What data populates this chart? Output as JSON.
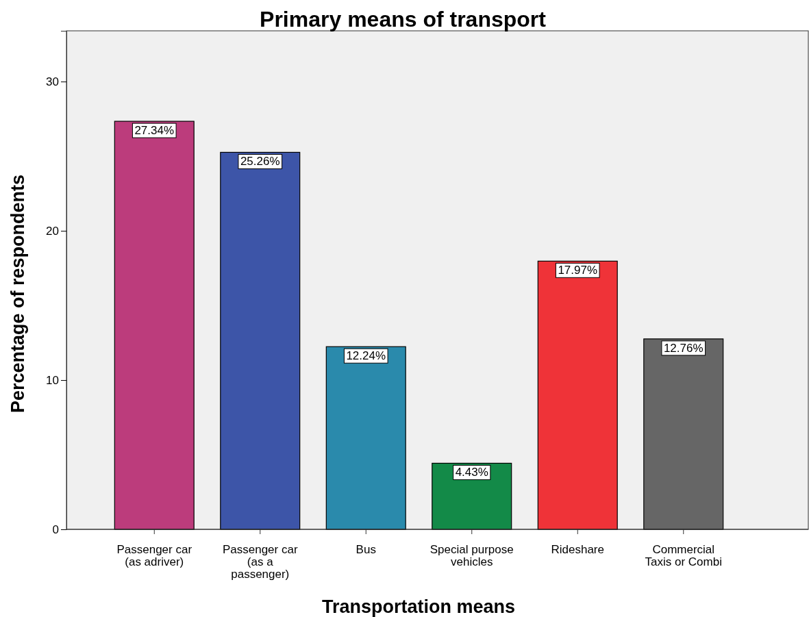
{
  "chart_data": {
    "type": "bar",
    "title": "Primary means of transport",
    "xlabel": "Transportation means",
    "ylabel": "Percentage of respondents",
    "categories": [
      "Passenger car\n(as adriver)",
      "Passenger car\n(as a\npassenger)",
      "Bus",
      "Special purpose\nvehicles",
      "Rideshare",
      "Commercial\nTaxis or Combi"
    ],
    "values": [
      27.34,
      25.26,
      12.24,
      4.43,
      17.97,
      12.76
    ],
    "value_labels": [
      "27.34%",
      "25.26%",
      "12.24%",
      "4.43%",
      "17.97%",
      "12.76%"
    ],
    "colors": [
      "#bc3c7c",
      "#3d55a8",
      "#2a8aac",
      "#138a48",
      "#ef3338",
      "#666666"
    ],
    "ylim": [
      0,
      33.4
    ],
    "yticks": [
      0,
      10,
      20,
      30
    ],
    "grid": false
  }
}
